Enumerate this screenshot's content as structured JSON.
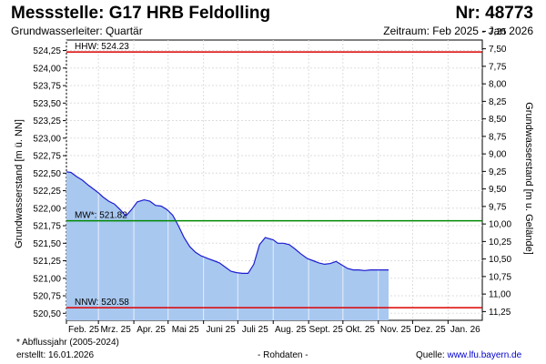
{
  "header": {
    "title": "Messstelle: G17 HRB Feldolling",
    "nr": "Nr: 48773",
    "aquifer": "Grundwasserleiter: Quartär",
    "period": "Zeitraum: Feb 2025 - Jan 2026"
  },
  "footer": {
    "note": "* Abflussjahr (2005-2024)",
    "created": "erstellt:  16.01.2026",
    "rawdata": "- Rohdaten -",
    "source_label": "Quelle:",
    "source_link": "www.lfu.bayern.de"
  },
  "colors": {
    "fill": "#a8c8f0",
    "line": "#1c1cd0",
    "hhw": "#dd0000",
    "mw": "#008800",
    "nnw": "#dd0000",
    "grid": "#dddddd"
  },
  "chart_data": {
    "type": "area",
    "ylabel": "Grundwasserstand [m ü. NN]",
    "y2label": "Grundwasserstand [m u. Gelände]",
    "ylim": [
      520.4,
      524.4
    ],
    "y2lim": [
      11.375,
      7.375
    ],
    "x_range": [
      "2025-02-01",
      "2026-01-31"
    ],
    "x_ticks": [
      "Feb. 25",
      "Mrz. 25",
      "Apr. 25",
      "Mai 25",
      "Juni 25",
      "Juli 25",
      "Aug. 25",
      "Sept. 25",
      "Okt. 25",
      "Nov. 25",
      "Dez. 25",
      "Jan. 26"
    ],
    "y_ticks": [
      "520,50",
      "520,75",
      "521,00",
      "521,25",
      "521,50",
      "521,75",
      "522,00",
      "522,25",
      "522,50",
      "522,75",
      "523,00",
      "523,25",
      "523,50",
      "523,75",
      "524,00",
      "524,25"
    ],
    "y_tick_values": [
      520.5,
      520.75,
      521.0,
      521.25,
      521.5,
      521.75,
      522.0,
      522.25,
      522.5,
      522.75,
      523.0,
      523.25,
      523.5,
      523.75,
      524.0,
      524.25
    ],
    "y2_ticks": [
      "7,25",
      "7,50",
      "7,75",
      "8,00",
      "8,25",
      "8,50",
      "8,75",
      "9,00",
      "9,25",
      "9,50",
      "9,75",
      "10,00",
      "10,25",
      "10,50",
      "10,75",
      "11,00",
      "11,25"
    ],
    "y2_tick_values": [
      7.25,
      7.5,
      7.75,
      8.0,
      8.25,
      8.5,
      8.75,
      9.0,
      9.25,
      9.5,
      9.75,
      10.0,
      10.25,
      10.5,
      10.75,
      11.0,
      11.25
    ],
    "reference_lines": [
      {
        "label": "HHW: 524.23",
        "value": 524.23,
        "color": "#dd0000"
      },
      {
        "label": "MW*: 521.82",
        "value": 521.82,
        "color": "#008800"
      },
      {
        "label": "NNW: 520.58",
        "value": 520.58,
        "color": "#dd0000"
      }
    ],
    "series": [
      {
        "x": [
          "2025-02-01",
          "2025-02-05",
          "2025-02-10",
          "2025-02-15",
          "2025-02-20",
          "2025-02-25",
          "2025-03-01",
          "2025-03-05",
          "2025-03-10",
          "2025-03-15",
          "2025-03-20",
          "2025-03-25",
          "2025-03-30",
          "2025-04-04",
          "2025-04-10",
          "2025-04-15",
          "2025-04-20",
          "2025-04-25",
          "2025-04-30",
          "2025-05-05",
          "2025-05-10",
          "2025-05-15",
          "2025-05-20",
          "2025-05-25",
          "2025-05-30",
          "2025-06-05",
          "2025-06-10",
          "2025-06-15",
          "2025-06-20",
          "2025-06-25",
          "2025-06-30",
          "2025-07-05",
          "2025-07-10",
          "2025-07-15",
          "2025-07-20",
          "2025-07-25",
          "2025-08-01",
          "2025-08-05",
          "2025-08-10",
          "2025-08-15",
          "2025-08-20",
          "2025-08-25",
          "2025-08-31",
          "2025-09-05",
          "2025-09-10",
          "2025-09-15",
          "2025-09-20",
          "2025-09-25",
          "2025-10-01",
          "2025-10-05",
          "2025-10-10",
          "2025-10-15",
          "2025-10-20",
          "2025-10-25",
          "2025-10-31",
          "2025-11-05",
          "2025-11-10"
        ],
        "y": [
          522.52,
          522.51,
          522.45,
          522.4,
          522.33,
          522.27,
          522.22,
          522.16,
          522.1,
          522.06,
          521.98,
          521.89,
          521.98,
          522.09,
          522.12,
          522.1,
          522.04,
          522.03,
          521.98,
          521.9,
          521.75,
          521.58,
          521.45,
          521.37,
          521.32,
          521.28,
          521.25,
          521.22,
          521.16,
          521.1,
          521.08,
          521.07,
          521.07,
          521.2,
          521.48,
          521.58,
          521.55,
          521.5,
          521.5,
          521.48,
          521.42,
          521.35,
          521.28,
          521.25,
          521.22,
          521.2,
          521.21,
          521.24,
          521.18,
          521.14,
          521.12,
          521.12,
          521.11,
          521.12,
          521.12,
          521.12,
          521.12
        ]
      }
    ]
  }
}
